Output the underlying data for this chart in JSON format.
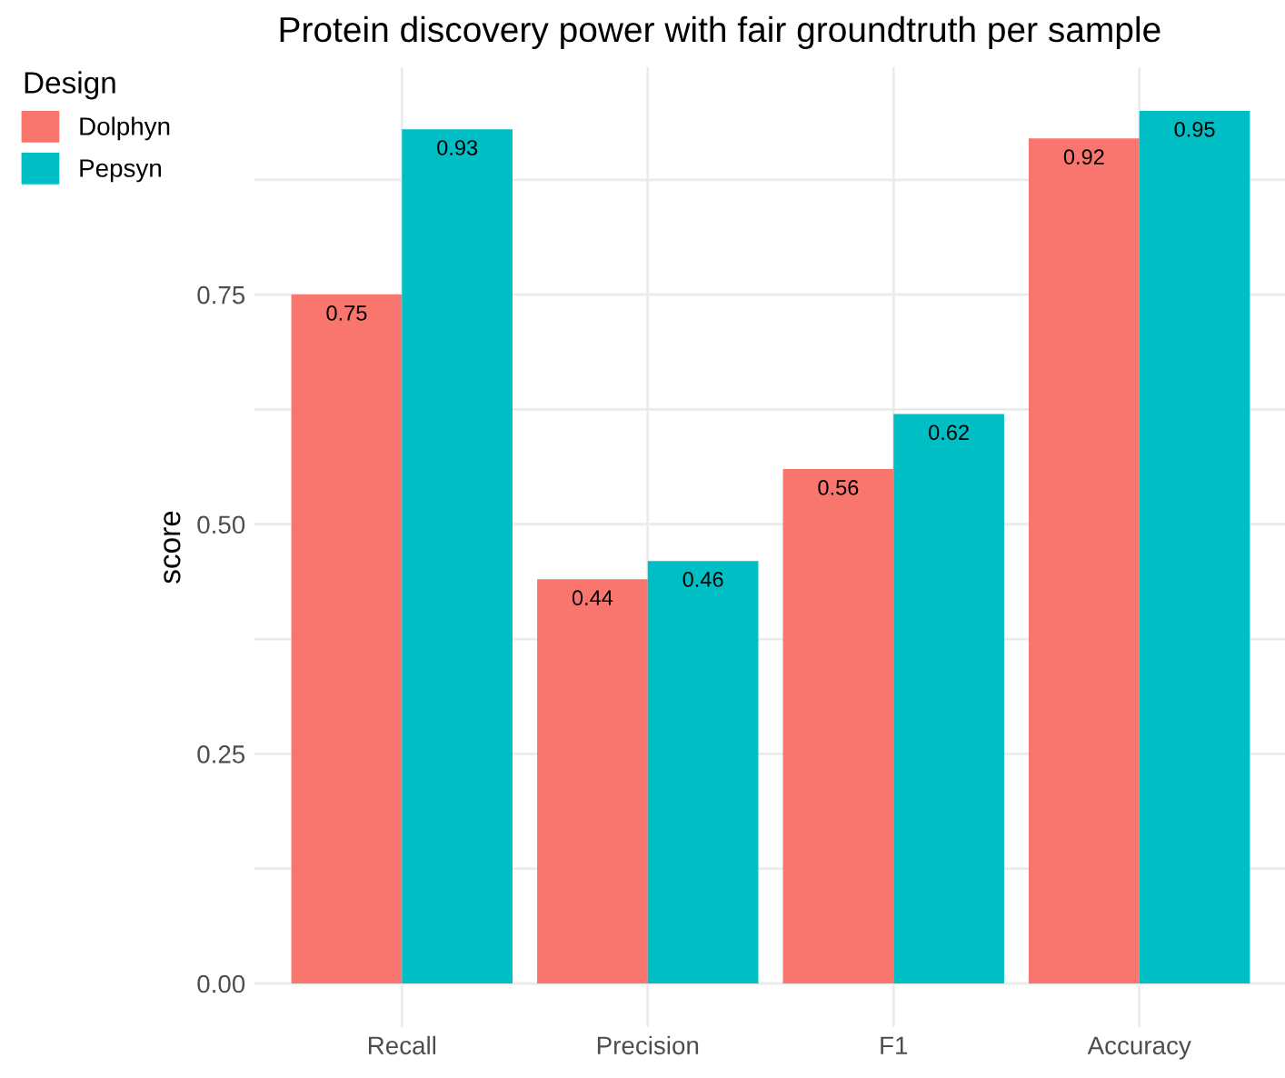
{
  "chart_data": {
    "type": "bar",
    "title": "Protein discovery power with fair groundtruth per sample",
    "ylabel": "score",
    "legend_title": "Design",
    "categories": [
      "Recall",
      "Precision",
      "F1",
      "Accuracy"
    ],
    "series": [
      {
        "name": "Dolphyn",
        "color": "#f8766d",
        "values": [
          0.75,
          0.44,
          0.56,
          0.92
        ]
      },
      {
        "name": "Pepsyn",
        "color": "#00bfc4",
        "values": [
          0.93,
          0.46,
          0.62,
          0.95
        ]
      }
    ],
    "ylim": [
      -0.0475,
      0.9975
    ],
    "yticks": [
      {
        "value": 0,
        "label": "0.00"
      },
      {
        "value": 0.125,
        "label": null
      },
      {
        "value": 0.25,
        "label": "0.25"
      },
      {
        "value": 0.375,
        "label": null
      },
      {
        "value": 0.5,
        "label": "0.50"
      },
      {
        "value": 0.625,
        "label": null
      },
      {
        "value": 0.75,
        "label": "0.75"
      },
      {
        "value": 0.875,
        "label": null
      }
    ],
    "grid": true,
    "legend": "top left",
    "data_labels": true
  }
}
